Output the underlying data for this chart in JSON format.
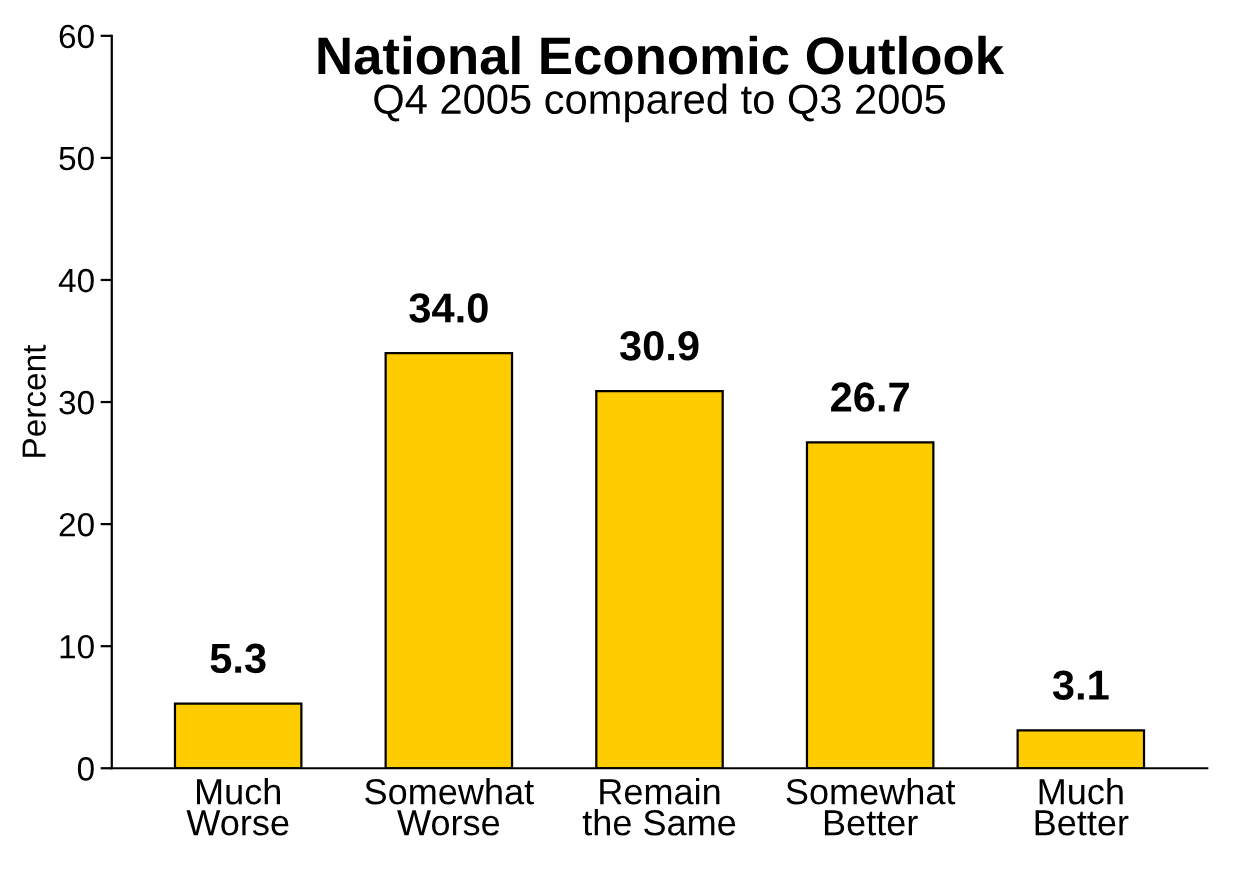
{
  "chart_data": {
    "type": "bar",
    "title": "National Economic Outlook",
    "subtitle": "Q4 2005 compared to Q3 2005",
    "ylabel": "Percent",
    "categories": [
      "Much\nWorse",
      "Somewhat\nWorse",
      "Remain\nthe Same",
      "Somewhat\nBetter",
      "Much\nBetter"
    ],
    "values": [
      5.3,
      34.0,
      30.9,
      26.7,
      3.1
    ],
    "value_labels": [
      "5.3",
      "34.0",
      "30.9",
      "26.7",
      "3.1"
    ],
    "color": "#ffcc00",
    "ylim": [
      0,
      60
    ],
    "yticks": [
      0,
      10,
      20,
      30,
      40,
      50,
      60
    ],
    "grid": false,
    "legend": false
  }
}
